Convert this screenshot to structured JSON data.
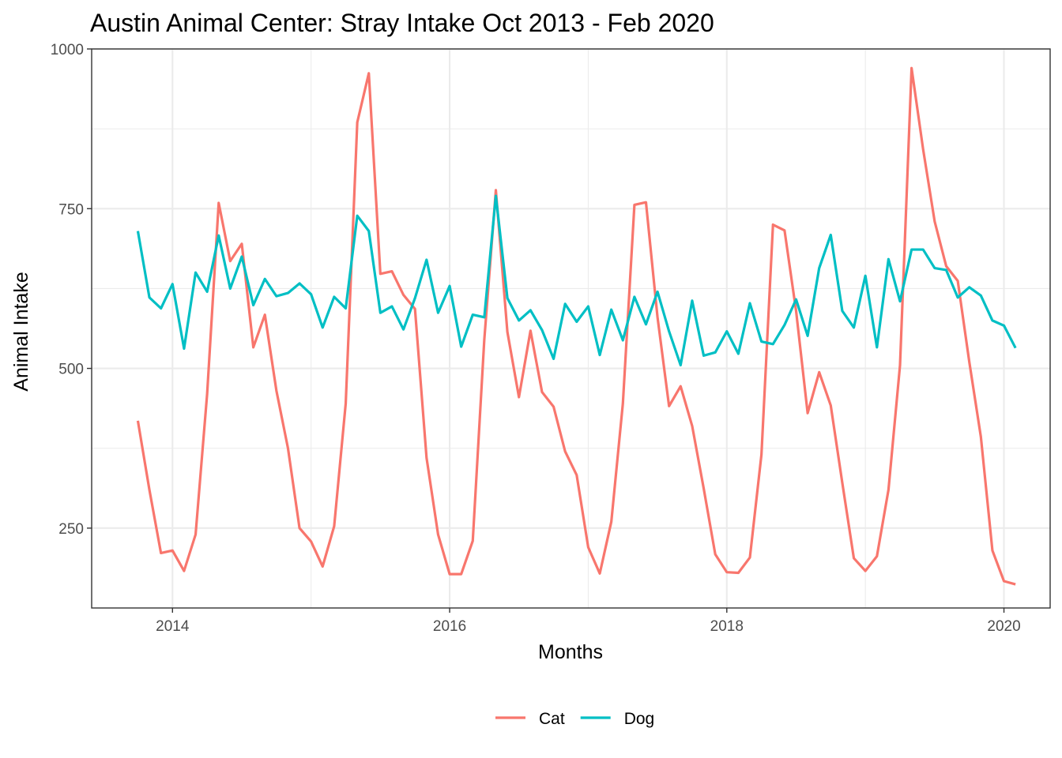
{
  "chart_data": {
    "type": "line",
    "title": "Austin Animal Center: Stray Intake Oct 2013 - Feb 2020",
    "xlabel": "Months",
    "ylabel": "Animal Intake",
    "x_start": "2013-10",
    "x_end": "2020-02",
    "xlim": [
      "2013-06",
      "2020-05"
    ],
    "ylim": [
      125,
      1000
    ],
    "x_ticks": [
      "2014",
      "2016",
      "2018",
      "2020"
    ],
    "y_ticks": [
      250,
      500,
      750,
      1000
    ],
    "grid": true,
    "legend_position": "bottom",
    "series": [
      {
        "name": "Cat",
        "color": "#F8766D",
        "values": [
          418,
          310,
          211,
          215,
          183,
          240,
          460,
          759,
          668,
          695,
          533,
          584,
          465,
          375,
          250,
          229,
          190,
          253,
          445,
          885,
          962,
          648,
          652,
          615,
          593,
          360,
          240,
          178,
          178,
          230,
          545,
          779,
          557,
          455,
          559,
          463,
          440,
          370,
          333,
          220,
          179,
          260,
          445,
          756,
          760,
          580,
          441,
          472,
          410,
          312,
          209,
          181,
          180,
          204,
          365,
          725,
          716,
          590,
          430,
          494,
          442,
          321,
          203,
          183,
          206,
          310,
          505,
          970,
          843,
          730,
          660,
          637,
          510,
          393,
          215,
          167,
          162
        ],
        "dates": [
          "2013-10",
          "2013-11",
          "2013-12",
          "2014-01",
          "2014-02",
          "2014-03",
          "2014-04",
          "2014-05",
          "2014-06",
          "2014-07",
          "2014-08",
          "2014-09",
          "2014-10",
          "2014-11",
          "2014-12",
          "2015-01",
          "2015-02",
          "2015-03",
          "2015-04",
          "2015-05",
          "2015-06",
          "2015-07",
          "2015-08",
          "2015-09",
          "2015-10",
          "2015-11",
          "2015-12",
          "2016-01",
          "2016-02",
          "2016-03",
          "2016-04",
          "2016-05",
          "2016-06",
          "2016-07",
          "2016-08",
          "2016-09",
          "2016-10",
          "2016-11",
          "2016-12",
          "2017-01",
          "2017-02",
          "2017-03",
          "2017-04",
          "2017-05",
          "2017-06",
          "2017-07",
          "2017-08",
          "2017-09",
          "2017-10",
          "2017-11",
          "2017-12",
          "2018-01",
          "2018-02",
          "2018-03",
          "2018-04",
          "2018-05",
          "2018-06",
          "2018-07",
          "2018-08",
          "2018-09",
          "2018-10",
          "2018-11",
          "2018-12",
          "2019-01",
          "2019-02",
          "2019-03",
          "2019-04",
          "2019-05",
          "2019-06",
          "2019-07",
          "2019-08",
          "2019-09",
          "2019-10",
          "2019-11",
          "2019-12",
          "2020-01",
          "2020-02"
        ]
      },
      {
        "name": "Dog",
        "color": "#00BFC4",
        "values": [
          715,
          611,
          594,
          632,
          531,
          650,
          620,
          708,
          625,
          675,
          599,
          640,
          613,
          618,
          633,
          616,
          564,
          612,
          594,
          739,
          715,
          587,
          597,
          561,
          610,
          670,
          587,
          629,
          534,
          584,
          580,
          770,
          610,
          575,
          591,
          560,
          515,
          601,
          573,
          597,
          521,
          592,
          544,
          612,
          569,
          620,
          558,
          505,
          606,
          520,
          525,
          558,
          523,
          602,
          542,
          538,
          568,
          608,
          551,
          657,
          709,
          590,
          564,
          645,
          533,
          671,
          605,
          686,
          686,
          657,
          654,
          611,
          627,
          614,
          575,
          567,
          532
        ]
      }
    ],
    "legend": [
      {
        "label": "Cat",
        "color": "#F8766D"
      },
      {
        "label": "Dog",
        "color": "#00BFC4"
      }
    ]
  }
}
